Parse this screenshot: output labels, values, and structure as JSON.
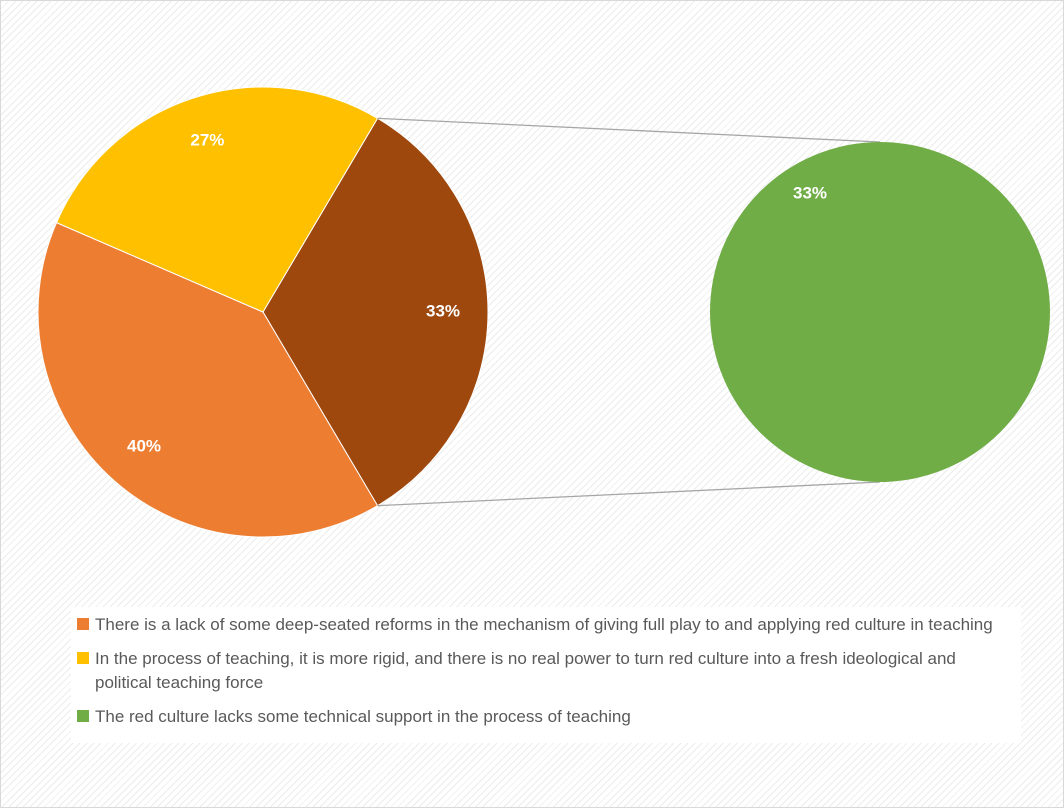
{
  "chart_data": {
    "type": "pie",
    "subtype": "pie-of-pie",
    "slices": [
      {
        "label": "There is a lack of some deep-seated reforms in the mechanism of giving full play to and applying red culture in teaching",
        "value": 40,
        "display": "40%",
        "color": "#ED7D31",
        "plot": "main"
      },
      {
        "label": "In the process of teaching, it is more rigid, and there is no real power to turn red culture into a fresh ideological and political teaching force",
        "value": 27,
        "display": "27%",
        "color": "#FFC000",
        "plot": "main"
      },
      {
        "label": "The red culture lacks some technical support in the process of teaching",
        "value": 33,
        "display": "33%",
        "color": "#70AD47",
        "plot": "secondary"
      }
    ],
    "other_slice": {
      "value": 33,
      "display": "33%",
      "color": "#9E480E"
    },
    "legend_position": "bottom",
    "title": ""
  }
}
